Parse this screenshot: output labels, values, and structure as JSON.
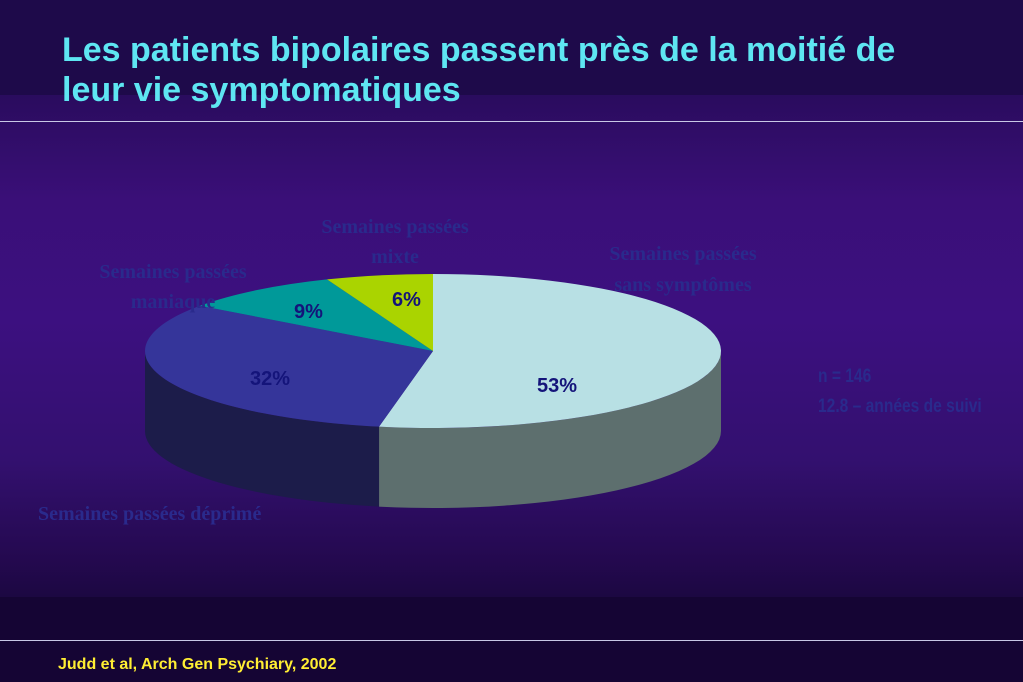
{
  "title": "Les patients bipolaires passent près de la moitié de leur vie symptomatiques",
  "citation": "Judd et al, Arch Gen Psychiary, 2002",
  "notes": [
    "n = 146",
    "12.8 – années de suivi"
  ],
  "colors": {
    "title": "#5ee6f2",
    "citation": "#ffee33",
    "label_text": "#2a2a8c"
  },
  "chart_data": {
    "type": "pie",
    "three_d": true,
    "slices": [
      {
        "label": "Semaines passées sans symptômes",
        "value": 53,
        "display": "53%",
        "color": "#b8e0e4"
      },
      {
        "label": "Semaines passées déprimé",
        "value": 32,
        "display": "32%",
        "color": "#35359a"
      },
      {
        "label": "Semaines passées maniaque",
        "value": 9,
        "display": "9%",
        "color": "#009999"
      },
      {
        "label": "Semaines passées mixte",
        "value": 6,
        "display": "6%",
        "color": "#aad400"
      }
    ]
  }
}
